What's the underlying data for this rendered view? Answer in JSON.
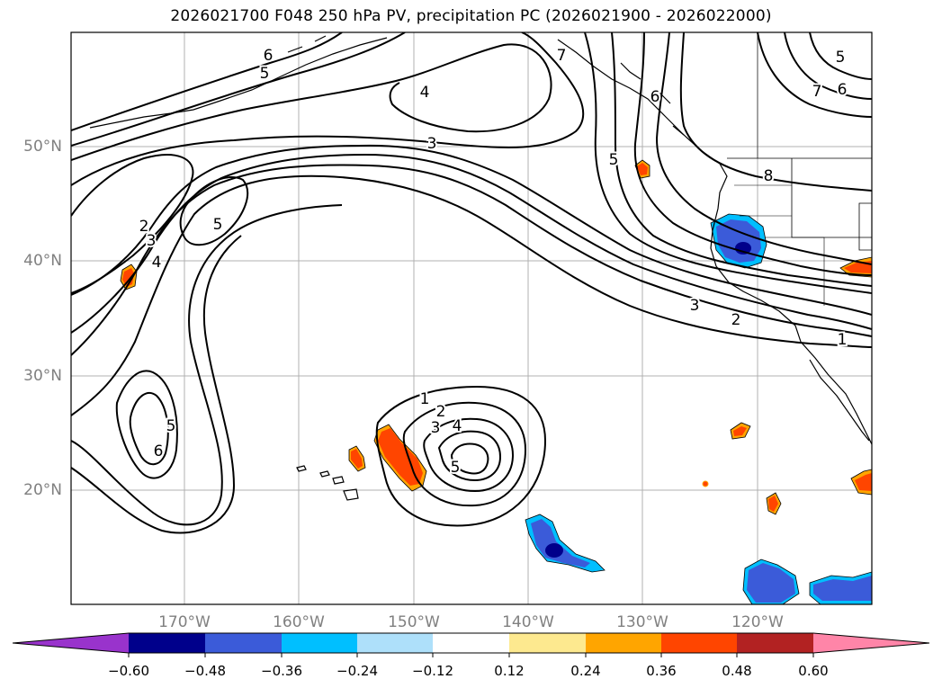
{
  "title": "2026021700 F048 250 hPa PV, precipitation PC (2026021900 - 2026022000)",
  "lat_labels": [
    "50°N",
    "40°N",
    "30°N",
    "20°N"
  ],
  "lon_labels": [
    "170°W",
    "160°W",
    "150°W",
    "140°W",
    "130°W",
    "120°W"
  ],
  "colorbar": {
    "tick_labels": [
      "−0.60",
      "−0.48",
      "−0.36",
      "−0.24",
      "−0.12",
      "0.12",
      "0.24",
      "0.36",
      "0.48",
      "0.60"
    ],
    "colors": [
      "#9933cc",
      "#00008b",
      "#3b5bd9",
      "#00bfff",
      "#aee0fa",
      "#ffffff",
      "#fde98f",
      "#ffa500",
      "#ff4500",
      "#b22222",
      "#ff85a8"
    ]
  },
  "contour_labels": [
    {
      "text": "6"
    },
    {
      "text": "5"
    },
    {
      "text": "4"
    },
    {
      "text": "3"
    },
    {
      "text": "7"
    },
    {
      "text": "6"
    },
    {
      "text": "5"
    },
    {
      "text": "8"
    },
    {
      "text": "7"
    },
    {
      "text": "6"
    },
    {
      "text": "5"
    },
    {
      "text": "2"
    },
    {
      "text": "3"
    },
    {
      "text": "4"
    },
    {
      "text": "5"
    },
    {
      "text": "5"
    },
    {
      "text": "6"
    },
    {
      "text": "3"
    },
    {
      "text": "2"
    },
    {
      "text": "1"
    },
    {
      "text": "1"
    },
    {
      "text": "2"
    },
    {
      "text": "3"
    },
    {
      "text": "4"
    },
    {
      "text": "5"
    }
  ]
}
